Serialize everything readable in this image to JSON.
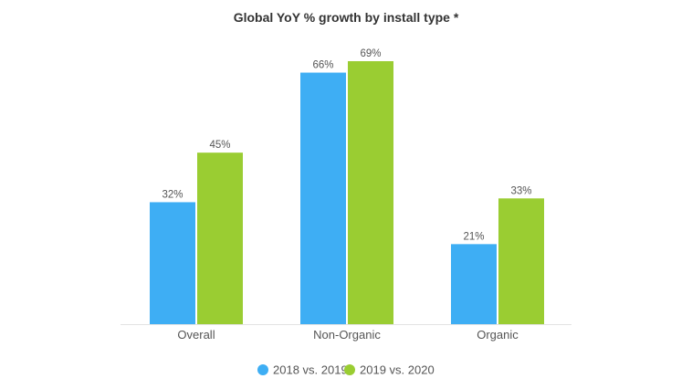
{
  "chart_data": {
    "type": "bar",
    "title": "Global YoY % growth by install type *",
    "xlabel": "",
    "ylabel": "",
    "categories": [
      "Overall",
      "Non-Organic",
      "Organic"
    ],
    "series": [
      {
        "name": "2018 vs. 2019",
        "color": "#3eaef4",
        "values": [
          32,
          66,
          21
        ],
        "labels": [
          "32%",
          "66%",
          "21%"
        ]
      },
      {
        "name": "2019 vs. 2020",
        "color": "#9acd32",
        "values": [
          45,
          69,
          33
        ],
        "labels": [
          "45%",
          "69%",
          "33%"
        ]
      }
    ],
    "ylim": [
      0,
      69
    ],
    "grid": false,
    "legend": "bottom-center"
  }
}
